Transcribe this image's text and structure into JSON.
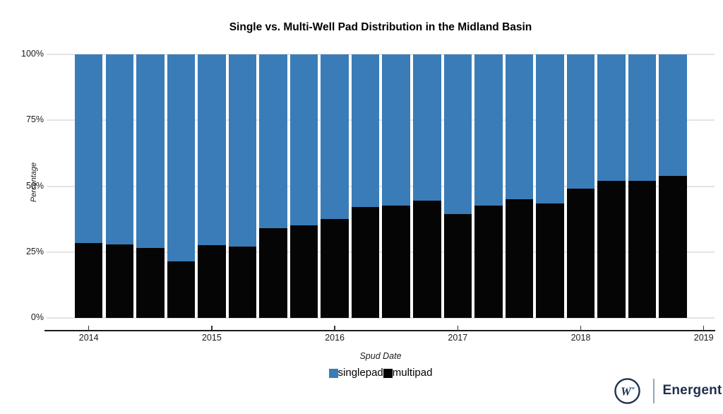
{
  "chart_data": {
    "type": "bar",
    "stacked": true,
    "title": "Single vs. Multi-Well Pad Distribution in the Midland Basin",
    "xlabel": "Spud Date",
    "ylabel": "Percentage",
    "ylim": [
      0,
      100
    ],
    "grid": true,
    "legend_position": "bottom",
    "x_ticks": [
      "2014",
      "2015",
      "2016",
      "2017",
      "2018",
      "2019"
    ],
    "y_ticks": [
      {
        "pct": 0,
        "label": "0%"
      },
      {
        "pct": 25,
        "label": "25%"
      },
      {
        "pct": 50,
        "label": "50%"
      },
      {
        "pct": 75,
        "label": "75%"
      },
      {
        "pct": 100,
        "label": "100%"
      }
    ],
    "categories": [
      "2014 Q1",
      "2014 Q2",
      "2014 Q3",
      "2014 Q4",
      "2015 Q1",
      "2015 Q2",
      "2015 Q3",
      "2015 Q4",
      "2016 Q1",
      "2016 Q2",
      "2016 Q3",
      "2016 Q4",
      "2017 Q1",
      "2017 Q2",
      "2017 Q3",
      "2017 Q4",
      "2018 Q1",
      "2018 Q2",
      "2018 Q3",
      "2018 Q4"
    ],
    "series": [
      {
        "name": "multipad",
        "color": "#050505",
        "values": [
          28.5,
          28,
          26.5,
          21.5,
          27.5,
          27,
          34,
          35,
          37.5,
          42,
          42.5,
          44.5,
          39.5,
          42.5,
          45,
          43.5,
          49,
          52,
          52,
          54
        ]
      },
      {
        "name": "singlepad",
        "color": "#3a7cb8",
        "values": [
          71.5,
          72,
          73.5,
          78.5,
          72.5,
          73,
          66,
          65,
          62.5,
          58,
          57.5,
          55.5,
          60.5,
          57.5,
          55,
          56.5,
          51,
          48,
          48,
          46
        ]
      }
    ],
    "legend": [
      {
        "label": "singlepad",
        "color": "#3a7cb8"
      },
      {
        "label": "multipad",
        "color": "#050505"
      }
    ]
  },
  "branding": {
    "name": "Energent",
    "logo_letter": "W",
    "navy": "#1e2f4d",
    "light_blue": "#3fa0e0"
  }
}
